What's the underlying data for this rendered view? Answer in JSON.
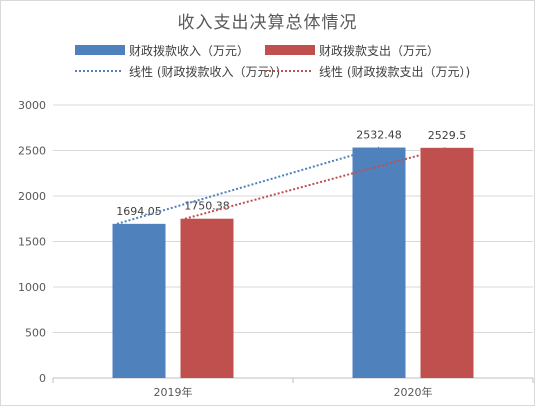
{
  "chart_data": {
    "type": "bar",
    "title": "收入支出决算总体情况",
    "categories": [
      "2019年",
      "2020年"
    ],
    "series": [
      {
        "name": "财政拨款收入（万元）",
        "values": [
          1694.05,
          2532.48
        ],
        "color": "#4f81bd"
      },
      {
        "name": "财政拨款支出（万元）",
        "values": [
          1750.38,
          2529.5
        ],
        "color": "#c0504d"
      }
    ],
    "value_labels": [
      [
        "1694.05",
        "2532.48"
      ],
      [
        "1750.38",
        "2529.5"
      ]
    ],
    "trendlines": [
      {
        "name": "线性 (财政拨款收入（万元）)",
        "series_index": 0,
        "style": "dotted",
        "color": "#4f81bd"
      },
      {
        "name": "线性 (财政拨款支出（万元）)",
        "series_index": 1,
        "style": "dotted",
        "color": "#c0504d"
      }
    ],
    "ylim": [
      0,
      3000
    ],
    "yticks": [
      0,
      500,
      1000,
      1500,
      2000,
      2500,
      3000
    ],
    "grid": true,
    "legend": "top"
  }
}
